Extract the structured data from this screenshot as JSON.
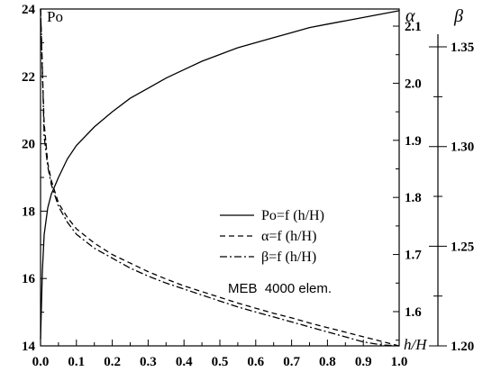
{
  "chart_data": {
    "type": "line",
    "x": [
      0.0,
      0.005,
      0.01,
      0.02,
      0.03,
      0.05,
      0.075,
      0.1,
      0.15,
      0.2,
      0.25,
      0.3,
      0.35,
      0.4,
      0.45,
      0.5,
      0.55,
      0.6,
      0.65,
      0.7,
      0.75,
      0.8,
      0.85,
      0.9,
      0.95,
      1.0
    ],
    "xlim": [
      0.0,
      1.0
    ],
    "xticks": [
      "0.0",
      "0.1",
      "0.2",
      "0.3",
      "0.4",
      "0.5",
      "0.6",
      "0.7",
      "0.8",
      "0.9",
      "1.0"
    ],
    "xlabel": "h/H",
    "axes": {
      "left": {
        "label": "Po",
        "lim": [
          14,
          24
        ],
        "ticks": [
          "14",
          "16",
          "18",
          "20",
          "22",
          "24"
        ]
      },
      "alpha": {
        "label": "α",
        "lim": [
          1.54,
          2.13
        ],
        "ticks": [
          "1.6",
          "1.7",
          "1.8",
          "1.9",
          "2.0",
          "2.1"
        ]
      },
      "beta": {
        "label": "β",
        "lim": [
          1.2,
          1.369
        ],
        "ticks": [
          "1.20",
          "1.25",
          "1.30",
          "1.35"
        ]
      }
    },
    "series": [
      {
        "name": "Po=f (h/H)",
        "axis": "left",
        "style": "solid",
        "values": [
          14.2,
          16.2,
          17.3,
          18.1,
          18.5,
          19.0,
          19.55,
          19.95,
          20.5,
          20.95,
          21.35,
          21.65,
          21.95,
          22.2,
          22.45,
          22.65,
          22.85,
          23.0,
          23.15,
          23.3,
          23.45,
          23.55,
          23.65,
          23.75,
          23.85,
          23.95
        ]
      },
      {
        "name": "α=f (h/H)",
        "axis": "alpha",
        "style": "dashed",
        "values": [
          2.13,
          2.02,
          1.93,
          1.86,
          1.83,
          1.79,
          1.765,
          1.745,
          1.72,
          1.7,
          1.685,
          1.67,
          1.657,
          1.645,
          1.635,
          1.625,
          1.615,
          1.606,
          1.597,
          1.589,
          1.58,
          1.572,
          1.564,
          1.556,
          1.548,
          1.54
        ]
      },
      {
        "name": "β=f (h/H)",
        "axis": "beta",
        "style": "dashdot",
        "values": [
          1.369,
          1.34,
          1.305,
          1.29,
          1.281,
          1.27,
          1.262,
          1.256,
          1.249,
          1.244,
          1.239,
          1.235,
          1.2315,
          1.2285,
          1.2255,
          1.2225,
          1.2195,
          1.217,
          1.2145,
          1.212,
          1.2095,
          1.207,
          1.2045,
          1.202,
          1.2005,
          1.2
        ]
      }
    ],
    "annotation": "MEB  4000 elem.",
    "legend_position": "center-right"
  }
}
